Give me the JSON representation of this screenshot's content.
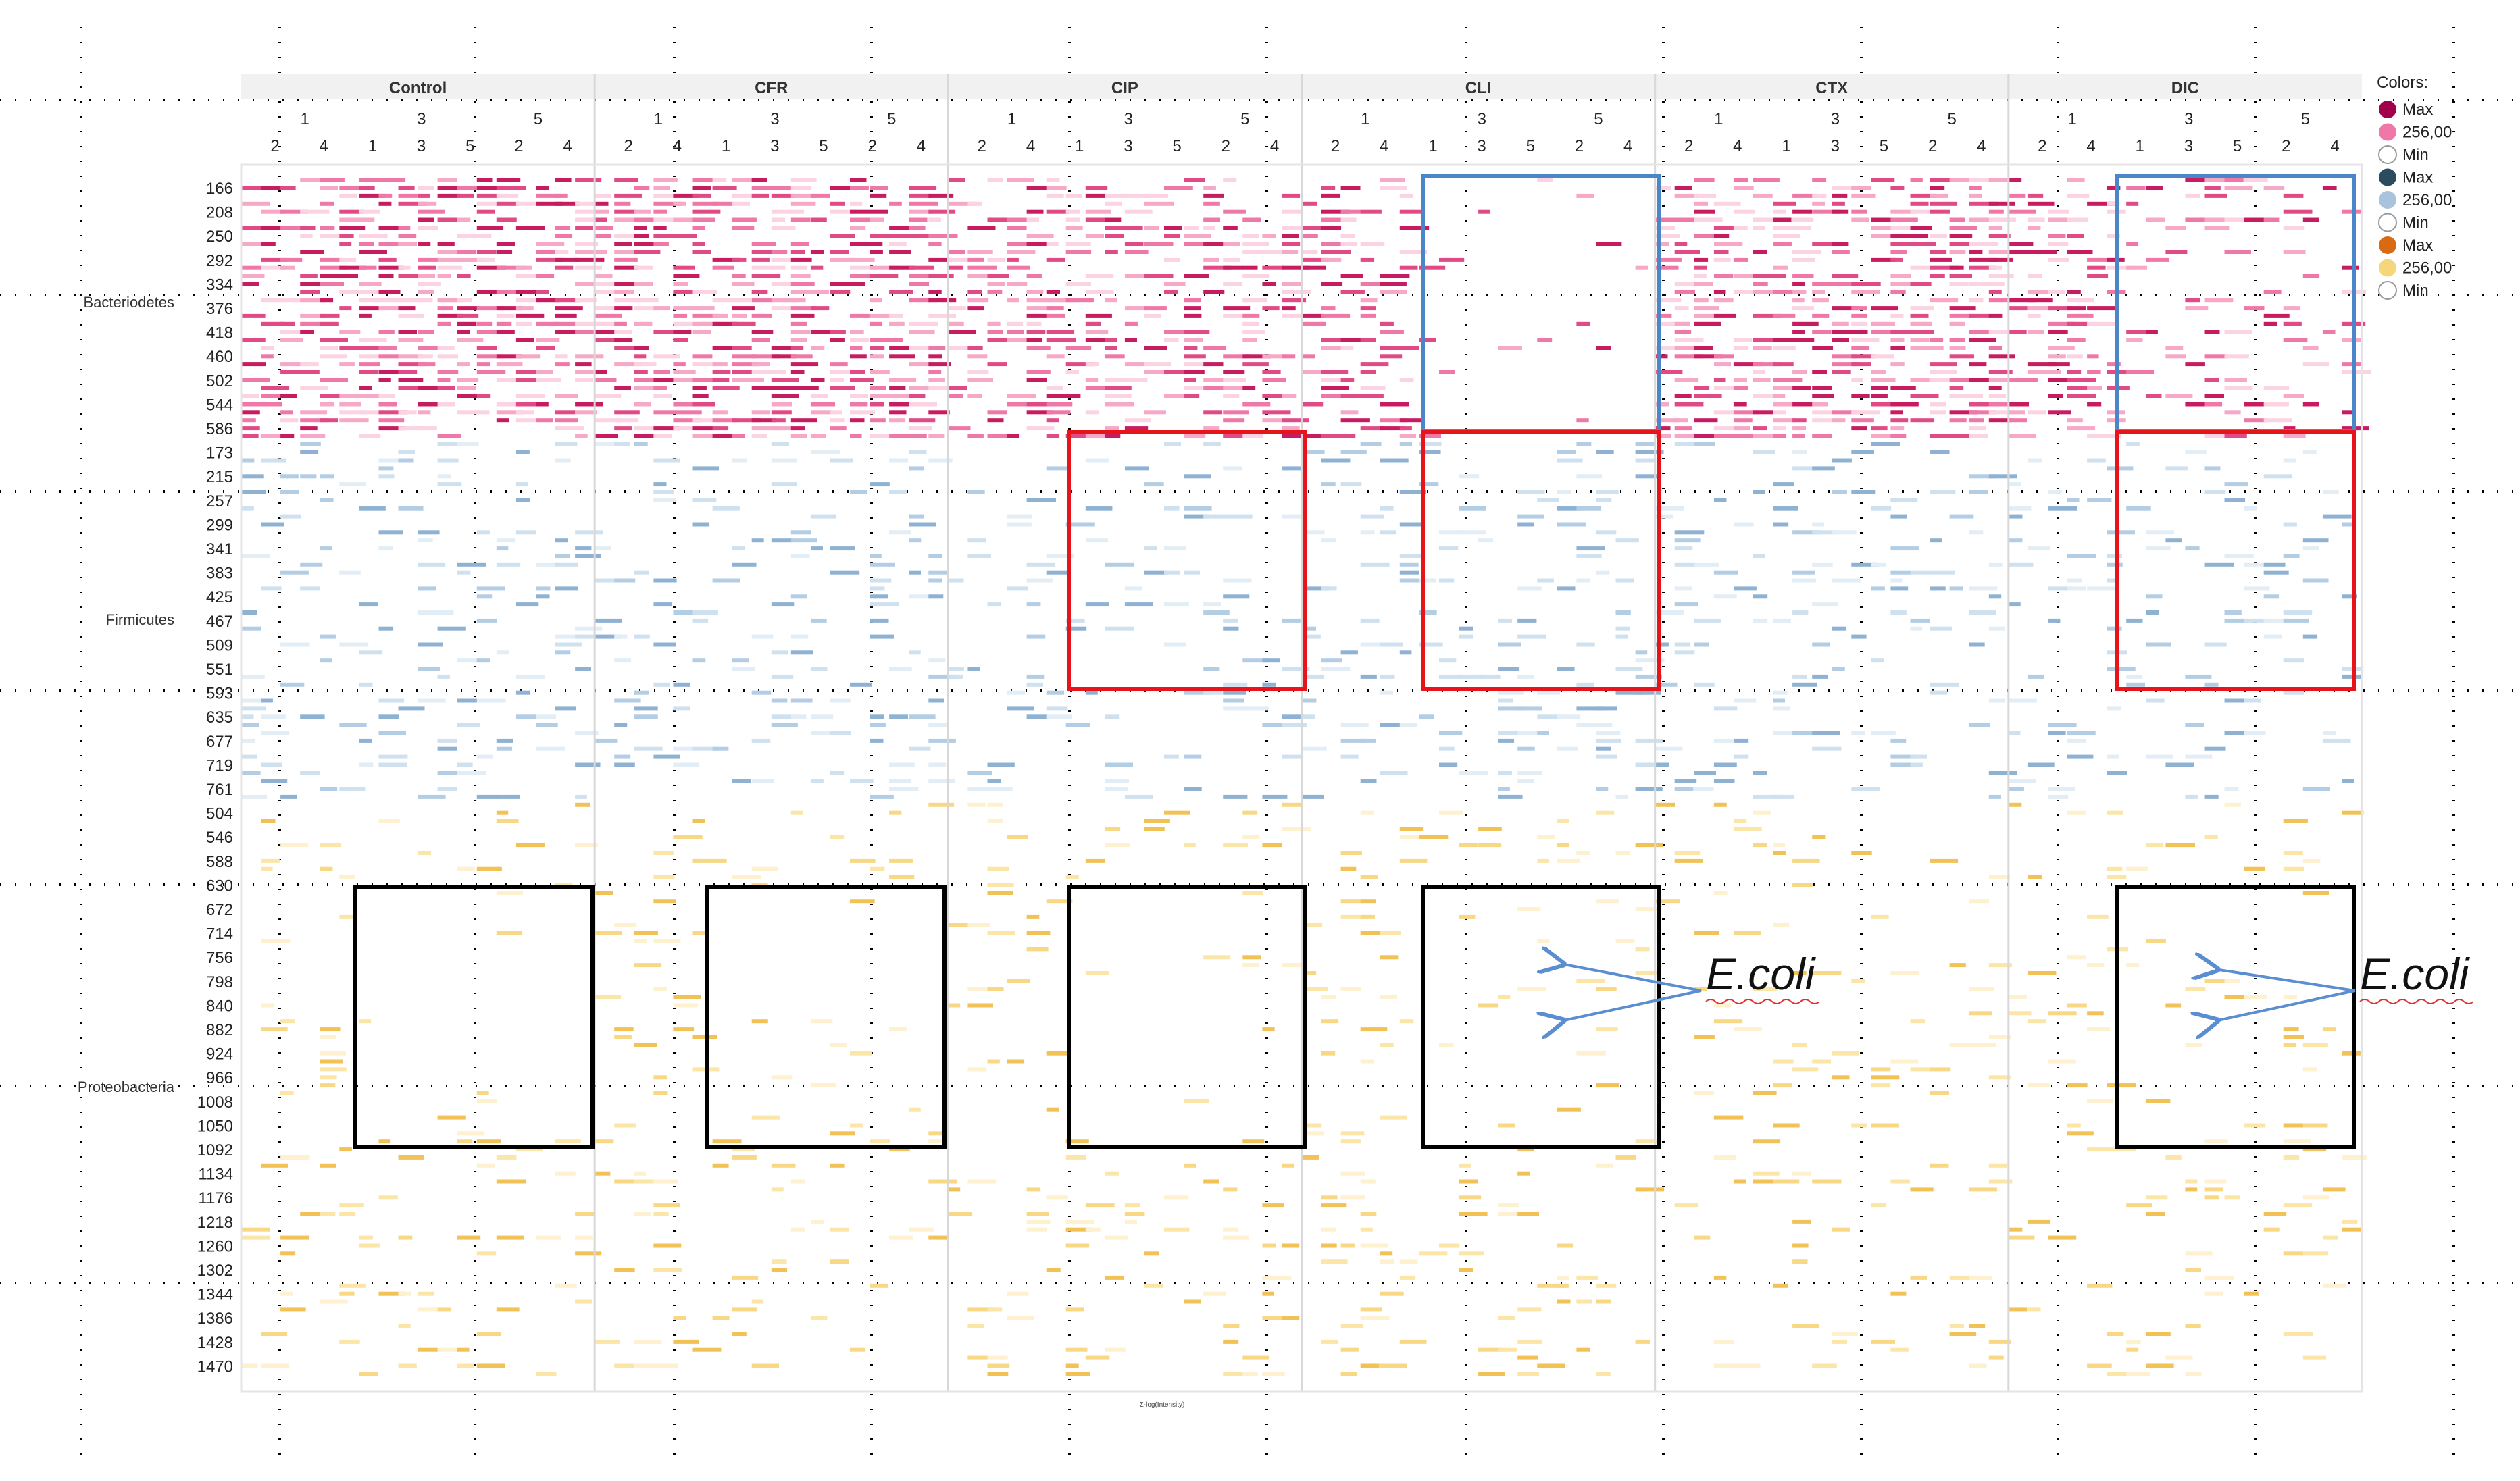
{
  "chart_data": {
    "type": "heatmap",
    "title": "",
    "xlabel": "Σ-log(Intensity)",
    "groups": [
      {
        "name": "Control",
        "top_ticks": [
          "1",
          "3",
          "5"
        ],
        "bottom_ticks": [
          "2",
          "4",
          "1",
          "3",
          "5",
          "2",
          "4"
        ]
      },
      {
        "name": "CFR",
        "top_ticks": [
          "1",
          "3",
          "5"
        ],
        "bottom_ticks": [
          "2",
          "4",
          "1",
          "3",
          "5",
          "2",
          "4"
        ]
      },
      {
        "name": "CIP",
        "top_ticks": [
          "1",
          "3",
          "5"
        ],
        "bottom_ticks": [
          "2",
          "4",
          "1",
          "3",
          "5",
          "2",
          "4"
        ]
      },
      {
        "name": "CLI",
        "top_ticks": [
          "1",
          "3",
          "5"
        ],
        "bottom_ticks": [
          "2",
          "4",
          "1",
          "3",
          "5",
          "2",
          "4"
        ]
      },
      {
        "name": "CTX",
        "top_ticks": [
          "1",
          "3",
          "5"
        ],
        "bottom_ticks": [
          "2",
          "4",
          "1",
          "3",
          "5",
          "2",
          "4"
        ]
      },
      {
        "name": "DIC",
        "top_ticks": [
          "1",
          "3",
          "5"
        ],
        "bottom_ticks": [
          "2",
          "4",
          "1",
          "3",
          "5",
          "2",
          "4"
        ]
      }
    ],
    "phyla": [
      {
        "name": "Bacteriodetes",
        "color": "#e0407a",
        "ticks": [
          "166",
          "208",
          "250",
          "292",
          "334",
          "376",
          "418",
          "460",
          "502",
          "544",
          "586"
        ]
      },
      {
        "name": "Firmicutes",
        "color": "#5b8fc4",
        "ticks": [
          "173",
          "215",
          "257",
          "299",
          "341",
          "383",
          "425",
          "467",
          "509",
          "551",
          "593",
          "635",
          "677",
          "719",
          "761"
        ]
      },
      {
        "name": "Proteobacteria",
        "color": "#f0b429",
        "ticks": [
          "504",
          "546",
          "588",
          "630",
          "672",
          "714",
          "756",
          "798",
          "840",
          "882",
          "924",
          "966",
          "1008",
          "1050",
          "1092",
          "1134",
          "1176",
          "1218",
          "1260",
          "1302",
          "1344",
          "1386",
          "1428",
          "1470"
        ]
      }
    ],
    "legend": {
      "title": "Colors:",
      "entries": [
        {
          "label": "Max",
          "color": "#a3004a"
        },
        {
          "label": "256,00",
          "color": "#f078a8"
        },
        {
          "label": "Min",
          "color": "#ffffff"
        },
        {
          "label": "Max",
          "color": "#2b4b5e"
        },
        {
          "label": "256,00",
          "color": "#a9c3dc"
        },
        {
          "label": "Min",
          "color": "#ffffff"
        },
        {
          "label": "Max",
          "color": "#d96a12"
        },
        {
          "label": "256,00",
          "color": "#f6d67a"
        },
        {
          "label": "Min",
          "color": "#ffffff"
        }
      ],
      "placement": "right"
    },
    "annotations": [
      {
        "text": "E.coli",
        "group": "CLI"
      },
      {
        "text": "E.coli",
        "group": "DIC"
      }
    ],
    "highlight_colors": {
      "blue": "#4a86c8",
      "red": "#e8141c",
      "black": "#000000",
      "arrow": "#5a8ed0"
    }
  }
}
